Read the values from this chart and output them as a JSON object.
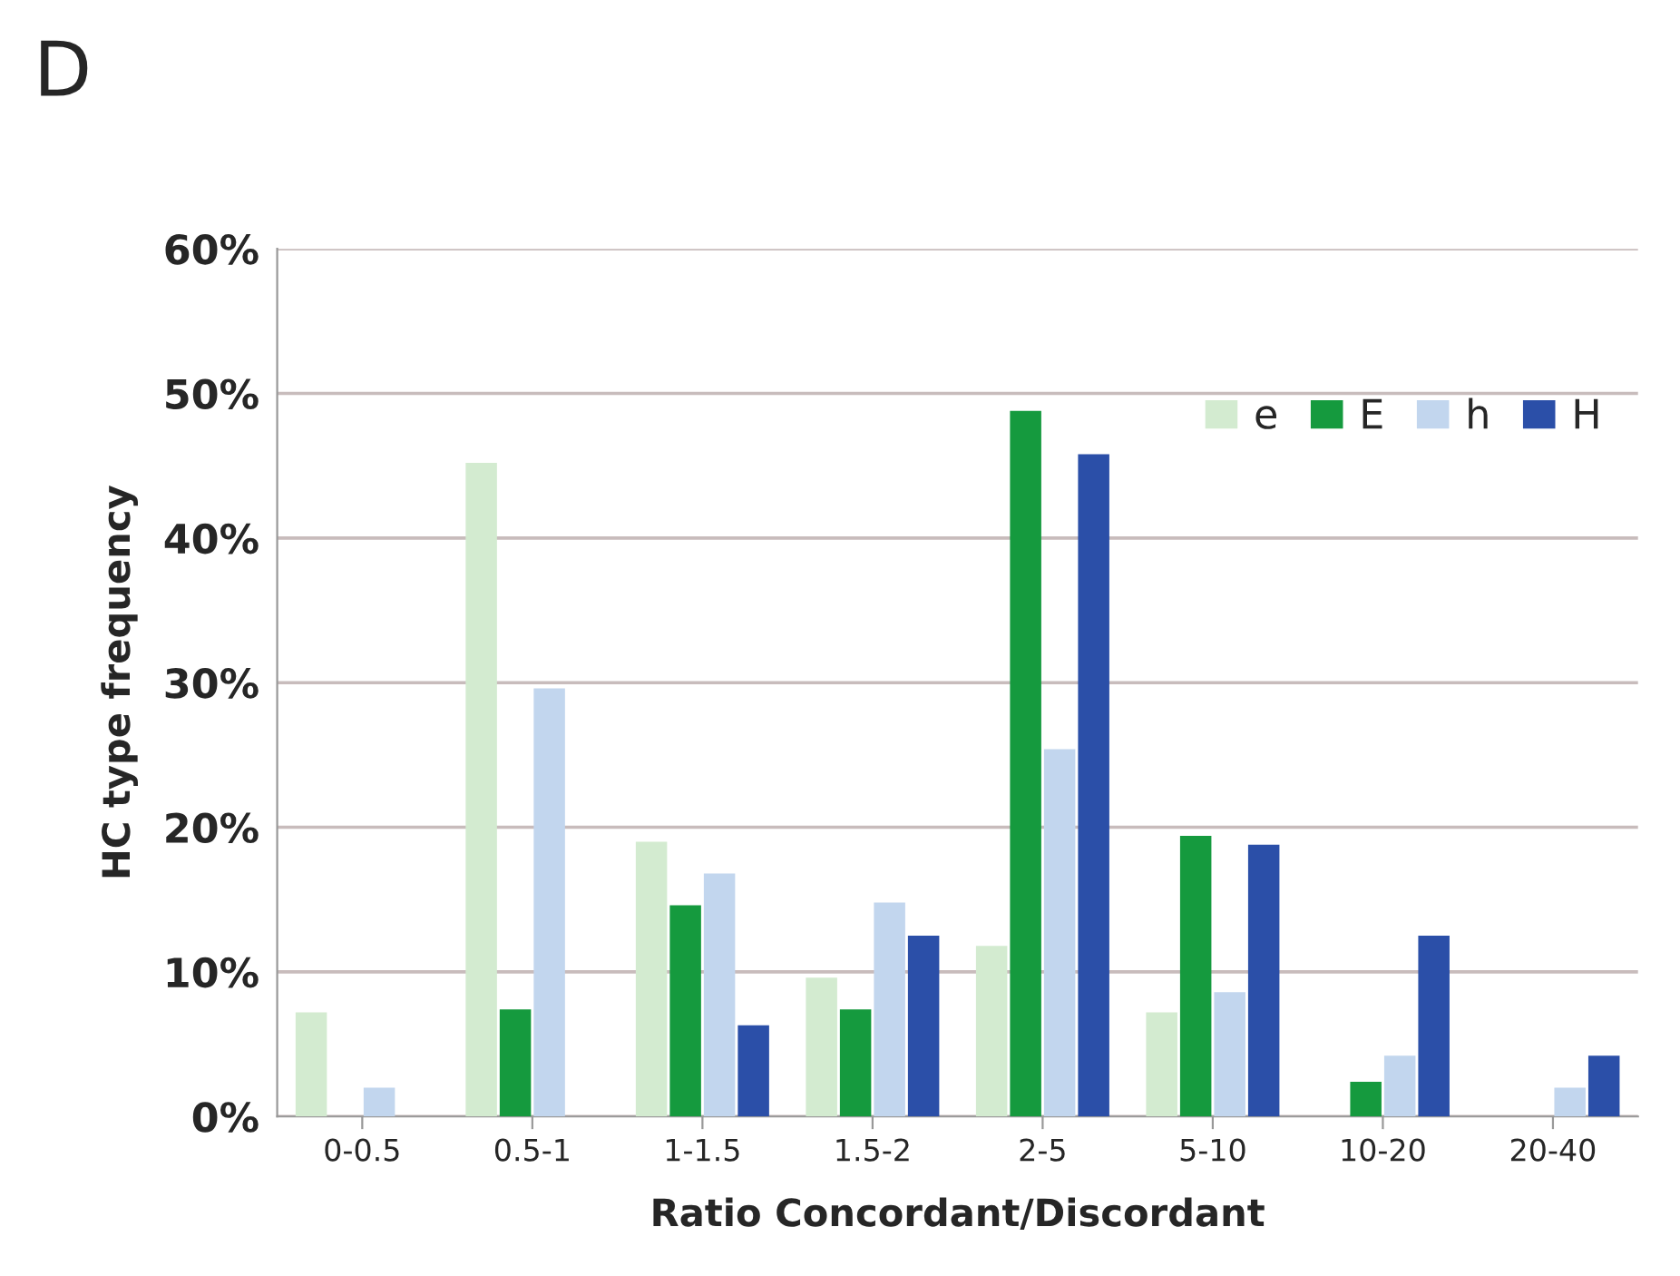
{
  "chart_data": {
    "type": "bar",
    "title": "D",
    "xlabel": "Ratio Concordant/Discordant",
    "ylabel": "HC type frequency",
    "categories": [
      "0-0.5",
      "0.5-1",
      "1-1.5",
      "1.5-2",
      "2-5",
      "5-10",
      "10-20",
      "20-40"
    ],
    "series": [
      {
        "name": "e",
        "color": "#d3ebd0",
        "values": [
          7.2,
          45.2,
          19,
          9.6,
          11.8,
          7.2,
          null,
          null
        ]
      },
      {
        "name": "E",
        "color": "#159a3e",
        "values": [
          null,
          7.4,
          14.6,
          7.4,
          48.8,
          19.4,
          2.4,
          null
        ]
      },
      {
        "name": "h",
        "color": "#c2d6ee",
        "values": [
          2,
          29.6,
          16.8,
          14.8,
          25.4,
          8.6,
          4.2,
          2
        ]
      },
      {
        "name": "H",
        "color": "#2b4fa8",
        "values": [
          null,
          null,
          6.3,
          12.5,
          45.8,
          18.8,
          12.5,
          4.2
        ]
      }
    ],
    "ylim": [
      0,
      60
    ],
    "yticks": [
      {
        "value": 0,
        "label": "0%"
      },
      {
        "value": 10,
        "label": "10%"
      },
      {
        "value": 20,
        "label": "20%"
      },
      {
        "value": 30,
        "label": "30%"
      },
      {
        "value": 40,
        "label": "40%"
      },
      {
        "value": 50,
        "label": "50%"
      },
      {
        "value": 60,
        "label": "60%"
      }
    ],
    "grid": "y",
    "legend": "top right"
  }
}
